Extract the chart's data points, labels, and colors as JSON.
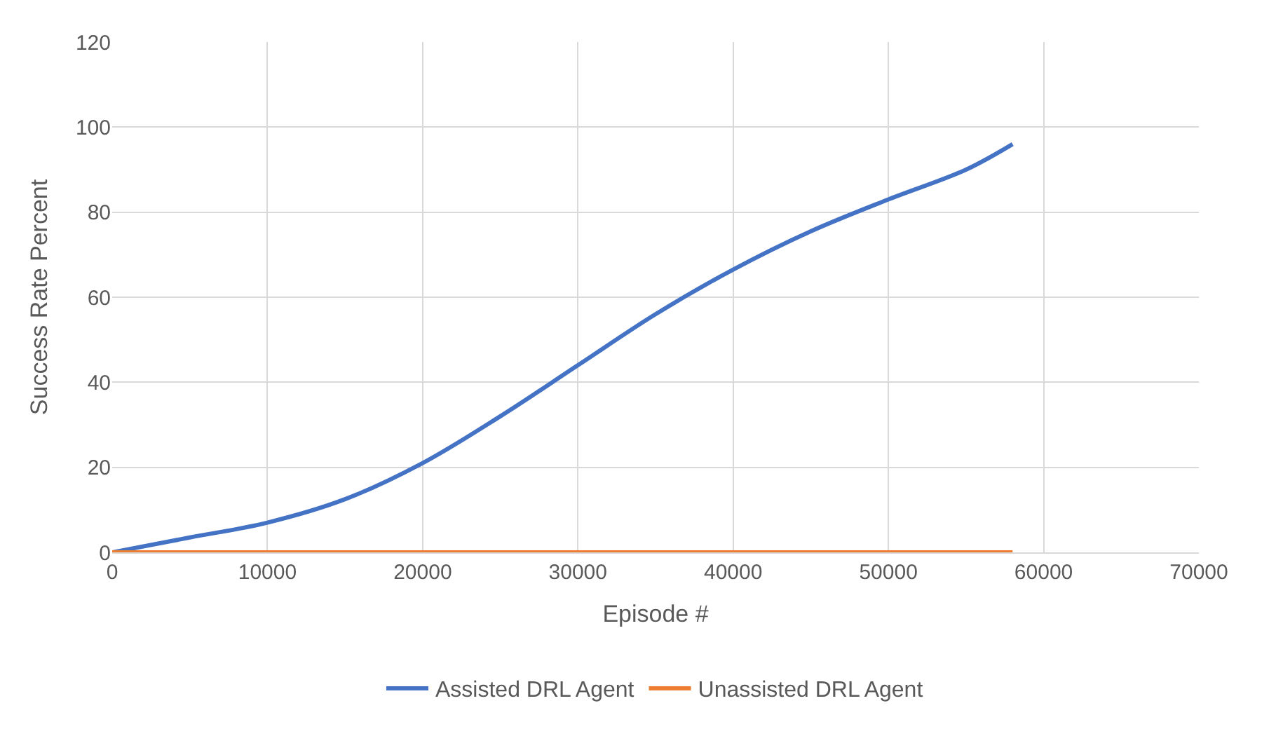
{
  "chart_data": {
    "type": "line",
    "xlabel": "Episode #",
    "ylabel": "Success Rate Percent",
    "series": [
      {
        "name": "Assisted DRL Agent",
        "color": "#4472c4",
        "x": [
          0,
          5000,
          10000,
          15000,
          20000,
          25000,
          30000,
          35000,
          40000,
          45000,
          50000,
          55000,
          58000
        ],
        "values": [
          0,
          3.5,
          7,
          12.5,
          21,
          32,
          44,
          56,
          66.5,
          75.5,
          83,
          90,
          96
        ]
      },
      {
        "name": "Unassisted DRL Agent",
        "color": "#ed7d31",
        "x": [
          0,
          58000
        ],
        "values": [
          0,
          0
        ]
      }
    ],
    "xlim": [
      0,
      70000
    ],
    "xticks": [
      0,
      10000,
      20000,
      30000,
      40000,
      50000,
      60000,
      70000
    ],
    "ylim": [
      0,
      120
    ],
    "yticks": [
      0,
      20,
      40,
      60,
      80,
      100,
      120
    ],
    "grid": true,
    "legend": "bottom",
    "marker": "none",
    "line_style": "solid"
  }
}
